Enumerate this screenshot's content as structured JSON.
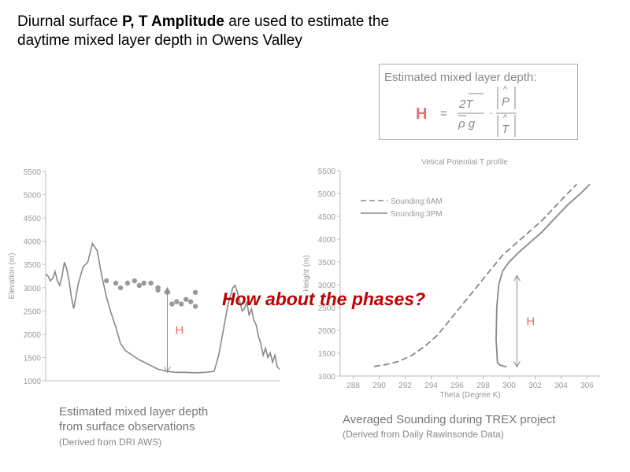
{
  "slide": {
    "title_pre": "Diurnal surface ",
    "title_bold": "P, T Amplitude",
    "title_post": " are used to estimate the",
    "title_line2": "daytime mixed layer depth in Owens Valley",
    "formula": {
      "label": "Estimated mixed layer depth:",
      "H": "H",
      "eq": "=",
      "num": "2T",
      "den": "ρ g",
      "dot": "·",
      "P": "P",
      "T": "T",
      "hat": "^"
    },
    "callout": "How about the phases?",
    "left_caption_line1": "Estimated mixed layer depth",
    "left_caption_line2": "from surface observations",
    "left_caption_sub": "(Derived from DRI AWS)",
    "right_caption": "Averaged Sounding during TREX project",
    "right_caption_sub": "(Derived from Daily Rawinsonde Data)",
    "colors": {
      "callout": "#c00000",
      "H": "#e07070",
      "lines": "#888888"
    }
  },
  "chart_data": [
    {
      "type": "line",
      "ylabel": "Elevation (m)",
      "ylim": [
        1000,
        5500
      ],
      "y_ticks": [
        "1000",
        "1500",
        "2000",
        "2500",
        "3000",
        "3500",
        "4000",
        "4500",
        "5000",
        "5500"
      ],
      "x_range": [
        0,
        100
      ],
      "annotation": "H",
      "series": [
        {
          "kind": "terrain-line",
          "x": [
            0,
            1,
            2,
            3,
            4,
            5,
            6,
            7,
            8,
            9,
            10,
            11,
            12,
            14,
            16,
            18,
            20,
            22,
            24,
            26,
            28,
            30,
            32,
            34,
            37,
            40,
            44,
            48,
            52,
            56,
            60,
            64,
            68,
            72,
            74,
            76,
            78,
            80,
            81,
            82,
            83,
            84,
            85,
            86,
            87,
            88,
            89,
            90,
            91,
            92,
            93,
            94,
            95,
            96,
            97,
            98,
            99,
            100
          ],
          "y": [
            3300,
            3250,
            3150,
            3200,
            3350,
            3150,
            3050,
            3250,
            3550,
            3400,
            3150,
            2800,
            2550,
            3100,
            3450,
            3550,
            3950,
            3800,
            3250,
            2800,
            2450,
            2150,
            1800,
            1650,
            1550,
            1450,
            1350,
            1250,
            1200,
            1180,
            1180,
            1170,
            1180,
            1200,
            1550,
            2100,
            2650,
            3000,
            3050,
            2900,
            2700,
            2500,
            2550,
            2700,
            2400,
            2550,
            2300,
            2200,
            1950,
            1800,
            1550,
            1700,
            1500,
            1600,
            1400,
            1550,
            1300,
            1250
          ]
        },
        {
          "kind": "scatter",
          "x": [
            26,
            30,
            32,
            35,
            38,
            40,
            42,
            45,
            48,
            48,
            52,
            54,
            56,
            58,
            60,
            62,
            64,
            64
          ],
          "y": [
            3150,
            3100,
            3000,
            3100,
            3150,
            3050,
            3100,
            3100,
            2950,
            3000,
            2900,
            2650,
            2700,
            2650,
            2750,
            2700,
            2900,
            2600
          ]
        }
      ],
      "H_arrow": {
        "x": 52,
        "from": 1180,
        "to": 3000
      }
    },
    {
      "type": "line",
      "title": "Vetical Potential T profile",
      "xlabel": "Theta (Degree K)",
      "ylabel": "Height (m)",
      "xlim": [
        287,
        307
      ],
      "ylim": [
        1000,
        5500
      ],
      "x_ticks": [
        "288",
        "290",
        "292",
        "294",
        "296",
        "298",
        "300",
        "302",
        "304",
        "306"
      ],
      "y_ticks": [
        "1000",
        "1500",
        "2000",
        "2500",
        "3000",
        "3500",
        "4000",
        "4500",
        "5000",
        "5500"
      ],
      "legend_position": "top-left",
      "annotation": "H",
      "series": [
        {
          "name": "Sounding:6AM",
          "style": "dashed",
          "x": [
            289.6,
            290.5,
            291.5,
            292.5,
            293.5,
            294.5,
            295.5,
            296.5,
            297.5,
            298.5,
            299.5,
            300.5,
            301.5,
            302.5,
            303.5,
            304.5,
            305.2
          ],
          "y": [
            1210,
            1250,
            1320,
            1450,
            1650,
            1900,
            2250,
            2600,
            2950,
            3300,
            3650,
            3900,
            4150,
            4400,
            4700,
            5000,
            5200
          ]
        },
        {
          "name": "Sounding:3PM",
          "style": "solid",
          "x": [
            299.8,
            299.3,
            299.1,
            299.0,
            299.05,
            299.2,
            299.5,
            300.0,
            300.7,
            301.5,
            302.5,
            303.5,
            304.5,
            305.5,
            306.2
          ],
          "y": [
            1200,
            1240,
            1300,
            1800,
            2500,
            3000,
            3300,
            3500,
            3700,
            3900,
            4150,
            4450,
            4750,
            5000,
            5200
          ]
        }
      ],
      "H_arrow": {
        "x": 300.6,
        "from": 1200,
        "to": 3200
      }
    }
  ]
}
